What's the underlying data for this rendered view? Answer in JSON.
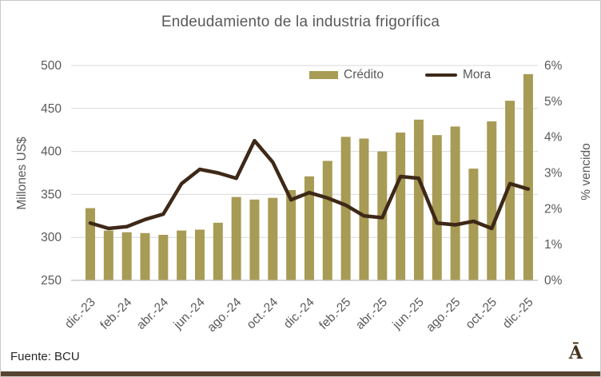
{
  "title": "Endeudamiento de la industria frigorífica",
  "footer": {
    "source": "Fuente: BCU",
    "logo_text": "Ā"
  },
  "colors": {
    "bar": "#a79b55",
    "line": "#3e2817",
    "axis_text": "#595959",
    "gridline": "#d9d9d9",
    "axis_line": "#bfbfbf",
    "bottom_band": "#564431",
    "source_text": "#262626",
    "logo": "#46321d"
  },
  "chart_data": {
    "type": "combo",
    "title": "Endeudamiento de la industria frigorífica",
    "n_points": 25,
    "grid": true,
    "legend_position": "top-center",
    "legend": [
      "Crédito",
      "Mora"
    ],
    "x_axis": {
      "ticks": [
        {
          "index": 0,
          "label": "dic.-23"
        },
        {
          "index": 2,
          "label": "feb.-24"
        },
        {
          "index": 4,
          "label": "abr.-24"
        },
        {
          "index": 6,
          "label": "jun.-24"
        },
        {
          "index": 8,
          "label": "ago.-24"
        },
        {
          "index": 10,
          "label": "oct.-24"
        },
        {
          "index": 12,
          "label": "dic.-24"
        },
        {
          "index": 14,
          "label": "feb.-25"
        },
        {
          "index": 16,
          "label": "abr.-25"
        },
        {
          "index": 18,
          "label": "jun.-25"
        },
        {
          "index": 20,
          "label": "ago.-25"
        },
        {
          "index": 22,
          "label": "oct.-25"
        },
        {
          "index": 24,
          "label": "dic.-25"
        }
      ]
    },
    "y_left": {
      "label": "Millones US$",
      "min": 250,
      "max": 500,
      "step": 50,
      "tick_labels": [
        "250",
        "300",
        "350",
        "400",
        "450",
        "500"
      ]
    },
    "y_right": {
      "label": "% vencido",
      "min": 0,
      "max": 6,
      "step": 1,
      "tick_labels": [
        "0%",
        "1%",
        "2%",
        "3%",
        "4%",
        "5%",
        "6%"
      ]
    },
    "series": [
      {
        "name": "Crédito",
        "type": "bar",
        "axis": "left",
        "color": "#a79b55",
        "values": [
          334,
          308,
          306,
          305,
          303,
          308,
          309,
          317,
          347,
          344,
          346,
          355,
          371,
          389,
          417,
          415,
          400,
          422,
          437,
          419,
          429,
          380,
          435,
          459,
          490
        ]
      },
      {
        "name": "Mora",
        "type": "line",
        "axis": "right",
        "color": "#3e2817",
        "values": [
          1.6,
          1.45,
          1.5,
          1.7,
          1.85,
          2.7,
          3.1,
          3.0,
          2.85,
          3.9,
          3.3,
          2.25,
          2.45,
          2.3,
          2.1,
          1.8,
          1.75,
          2.9,
          2.85,
          1.6,
          1.55,
          1.65,
          1.45,
          2.7,
          2.55
        ]
      }
    ]
  }
}
